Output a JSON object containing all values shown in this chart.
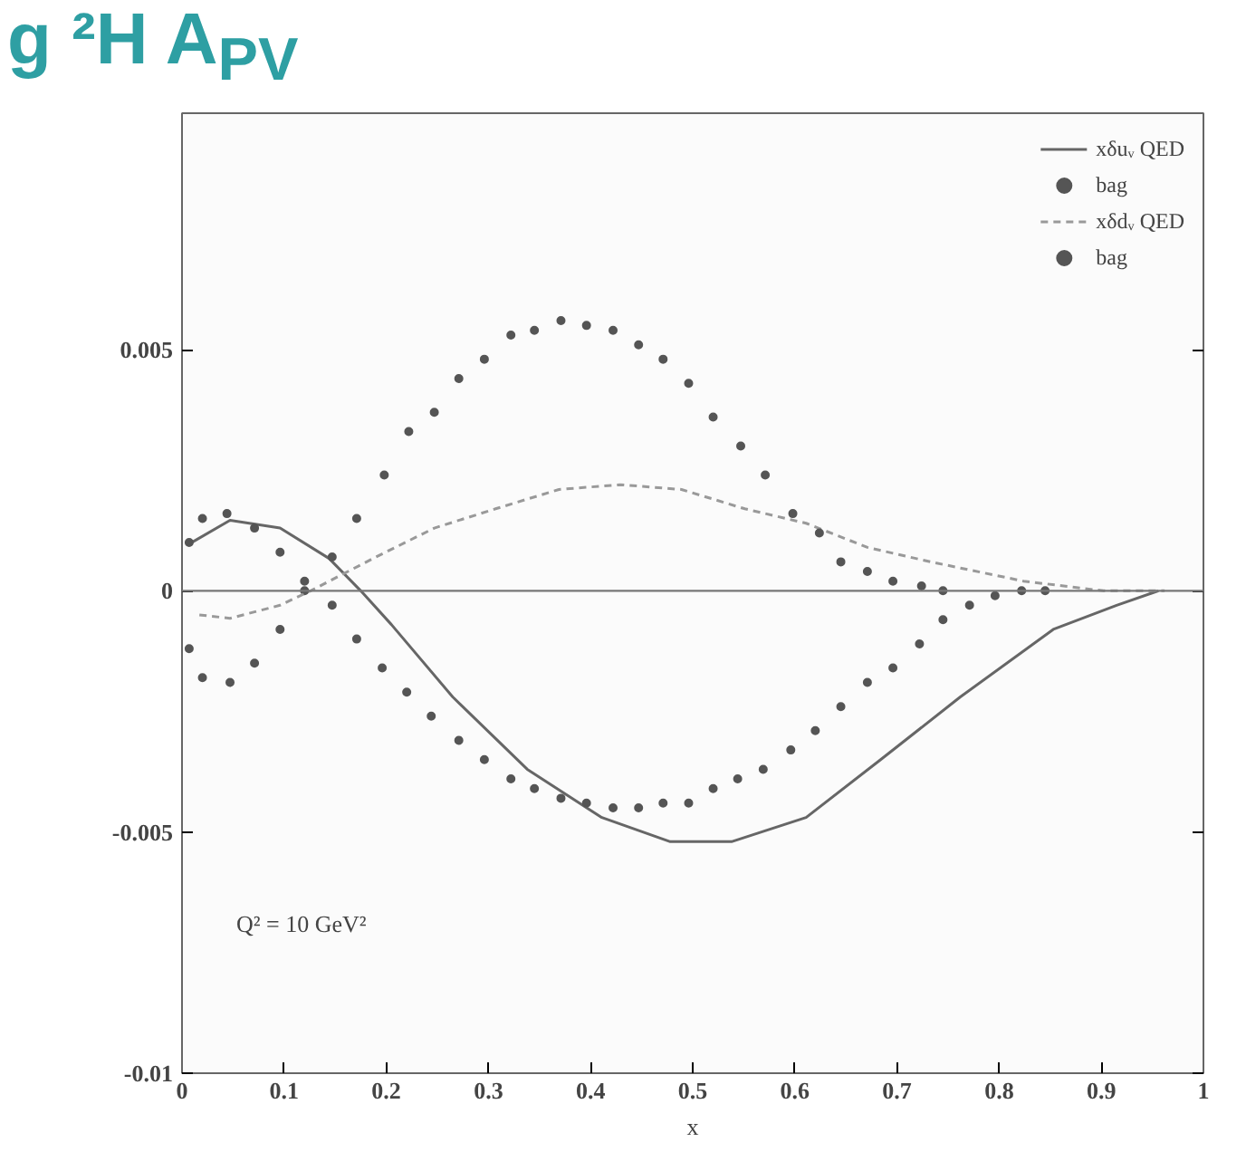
{
  "chart_data": {
    "type": "line",
    "title": "g ²H A$_{PV}$",
    "xlabel": "x",
    "annotations": [
      "Q² = 10 GeV²"
    ],
    "xlim": [
      0,
      1
    ],
    "ylim": [
      -0.01,
      0.0099
    ],
    "xticks": [
      0,
      0.1,
      0.2,
      0.3,
      0.4,
      0.5,
      0.6,
      0.7,
      0.8,
      0.9,
      1
    ],
    "yticks": [
      -0.01,
      -0.005,
      0,
      0.005
    ],
    "grid": false,
    "legend": "top right",
    "ref_lines": [
      {
        "axis": "y",
        "value": 0,
        "color": "#777777"
      }
    ],
    "series": [
      {
        "name": "xδuᵥ QED",
        "line_style": "solid",
        "color": "#666666",
        "x": [
          0.007,
          0.047,
          0.096,
          0.144,
          0.175,
          0.205,
          0.265,
          0.338,
          0.411,
          0.478,
          0.538,
          0.611,
          0.684,
          0.762,
          0.853,
          0.915,
          0.956
        ],
        "values": [
          0.00097,
          0.00146,
          0.0013,
          0.00067,
          0,
          -0.0007,
          -0.0022,
          -0.0037,
          -0.0047,
          -0.0052,
          -0.0052,
          -0.0047,
          -0.0035,
          -0.0022,
          -0.0008,
          -0.0003,
          0
        ]
      },
      {
        "name": "bag",
        "type": "scatter",
        "marker": "circle",
        "color": "#555555",
        "x": [
          0.007,
          0.02,
          0.044,
          0.071,
          0.096,
          0.12,
          0.147,
          0.171,
          0.196,
          0.22,
          0.244,
          0.271,
          0.296,
          0.322,
          0.345,
          0.371,
          0.396,
          0.422,
          0.447,
          0.471,
          0.496,
          0.52,
          0.544,
          0.569,
          0.596,
          0.62,
          0.645,
          0.671,
          0.696,
          0.722,
          0.745,
          0.771,
          0.796,
          0.822,
          0.845
        ],
        "values": [
          0.001,
          0.0015,
          0.0016,
          0.0013,
          0.0008,
          0.0,
          -0.0003,
          -0.001,
          -0.0016,
          -0.0021,
          -0.0026,
          -0.0031,
          -0.0035,
          -0.0039,
          -0.0041,
          -0.0043,
          -0.0044,
          -0.0045,
          -0.0045,
          -0.0044,
          -0.0044,
          -0.0041,
          -0.0039,
          -0.0037,
          -0.0033,
          -0.0029,
          -0.0024,
          -0.0019,
          -0.0016,
          -0.0011,
          -0.0006,
          -0.0003,
          -0.0001,
          0,
          0
        ]
      },
      {
        "name": "xδdᵥ QED",
        "line_style": "dashed",
        "color": "#999999",
        "x": [
          0.017,
          0.047,
          0.096,
          0.126,
          0.187,
          0.247,
          0.307,
          0.369,
          0.429,
          0.489,
          0.551,
          0.611,
          0.671,
          0.733,
          0.824,
          0.902,
          0.962
        ],
        "values": [
          -0.0005,
          -0.00057,
          -0.0003,
          0,
          0.00067,
          0.0013,
          0.0017,
          0.0021,
          0.0022,
          0.0021,
          0.0017,
          0.0014,
          0.0009,
          0.0006,
          0.0002,
          0,
          0
        ]
      },
      {
        "name": "bag",
        "type": "scatter",
        "marker": "circle",
        "color": "#555555",
        "x": [
          0.007,
          0.02,
          0.047,
          0.071,
          0.096,
          0.12,
          0.147,
          0.171,
          0.198,
          0.222,
          0.247,
          0.271,
          0.296,
          0.322,
          0.345,
          0.371,
          0.396,
          0.422,
          0.447,
          0.471,
          0.496,
          0.52,
          0.547,
          0.571,
          0.598,
          0.624,
          0.645,
          0.671,
          0.696,
          0.724,
          0.745
        ],
        "values": [
          -0.0012,
          -0.0018,
          -0.0019,
          -0.0015,
          -0.0008,
          0.0002,
          0.0007,
          0.0015,
          0.0024,
          0.0033,
          0.0037,
          0.0044,
          0.0048,
          0.0053,
          0.0054,
          0.0056,
          0.0055,
          0.0054,
          0.0051,
          0.0048,
          0.0043,
          0.0036,
          0.003,
          0.0024,
          0.0016,
          0.0012,
          0.0006,
          0.0004,
          0.0002,
          0.0001,
          0
        ]
      }
    ]
  }
}
